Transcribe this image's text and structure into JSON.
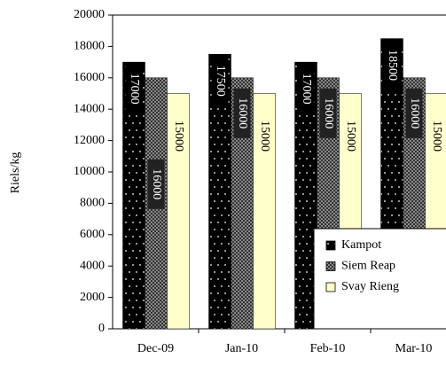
{
  "chart_data": {
    "type": "bar",
    "y_label": "Riels/kg",
    "categories": [
      "Dec-09",
      "Jan-10",
      "Feb-10",
      "Mar-10"
    ],
    "series": [
      {
        "name": "Kampot",
        "color": "#000000",
        "values": [
          17000,
          17500,
          17000,
          18500
        ]
      },
      {
        "name": "Siem Reap",
        "color": "#333333",
        "values": [
          16000,
          16000,
          16000,
          16000
        ]
      },
      {
        "name": "Svay Rieng",
        "color": "#ffffcc",
        "values": [
          15000,
          15000,
          15000,
          15000
        ]
      }
    ],
    "ylim": [
      0,
      20000
    ],
    "yticks": [
      0,
      2000,
      4000,
      6000,
      8000,
      10000,
      12000,
      14000,
      16000,
      18000,
      20000
    ],
    "legend": "lower right",
    "grid": false
  }
}
